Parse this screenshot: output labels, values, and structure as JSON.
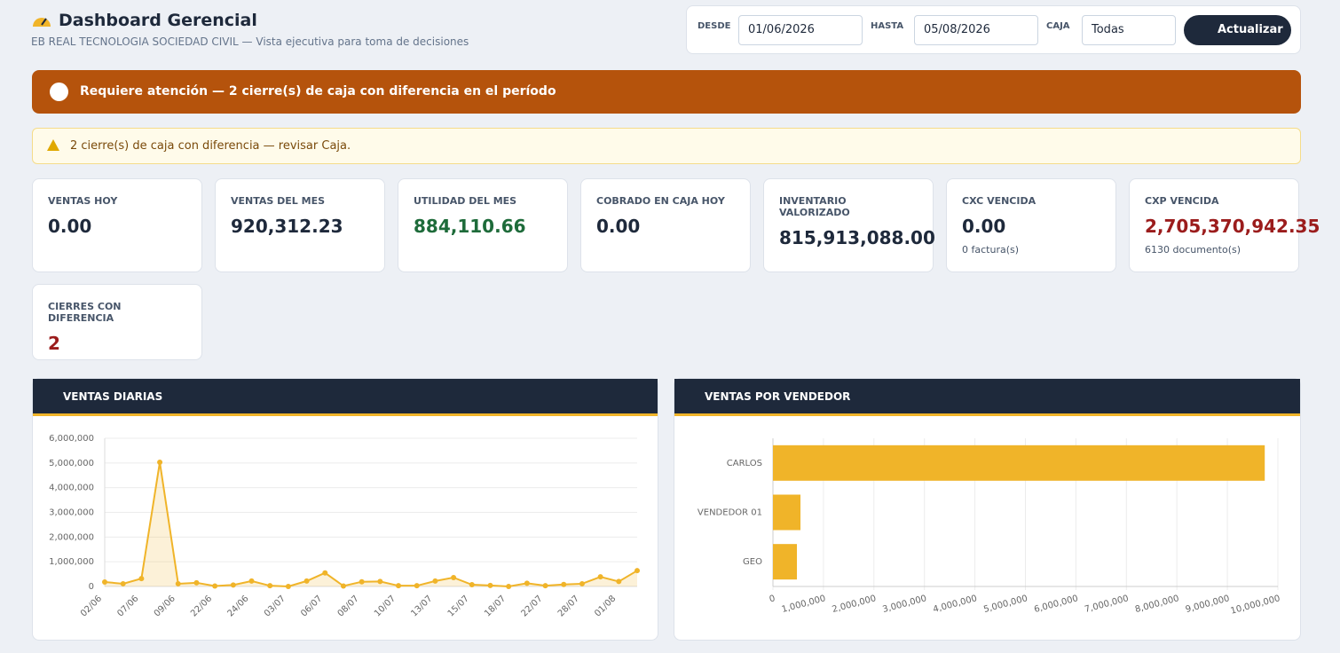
{
  "header": {
    "title": "Dashboard Gerencial",
    "subtitle": "EB REAL TECNOLOGIA SOCIEDAD CIVIL — Vista ejecutiva para toma de decisiones"
  },
  "filters": {
    "from_label": "DESDE",
    "from_value": "01/06/2026",
    "to_label": "HASTA",
    "to_value": "05/08/2026",
    "box_label": "CAJA",
    "box_value": "Todas",
    "button": "Actualizar"
  },
  "alert": "Requiere atención — 2 cierre(s) de caja con diferencia en el período",
  "warning": "2 cierre(s) de caja con diferencia — revisar Caja.",
  "kpis": [
    {
      "label": "VENTAS HOY",
      "value": "0.00",
      "color": "#1e293b"
    },
    {
      "label": "VENTAS DEL MES",
      "value": "920,312.23",
      "color": "#1e293b"
    },
    {
      "label": "UTILIDAD DEL MES",
      "value": "884,110.66",
      "color": "#1e6b3a"
    },
    {
      "label": "COBRADO EN CAJA HOY",
      "value": "0.00",
      "color": "#1e293b"
    },
    {
      "label": "INVENTARIO VALORIZADO",
      "value": "815,913,088.00",
      "color": "#1e293b"
    },
    {
      "label": "CXC VENCIDA",
      "value": "0.00",
      "sub": "0 factura(s)",
      "color": "#1e293b"
    },
    {
      "label": "CXP VENCIDA",
      "value": "2,705,370,942.35",
      "sub": "6130 documento(s)",
      "color": "#9b1c1c"
    },
    {
      "label": "CIERRES CON DIFERENCIA",
      "value": "2",
      "color": "#9b1c1c"
    }
  ],
  "chart_data": [
    {
      "type": "line",
      "title": "VENTAS DIARIAS",
      "color": "#f0b429",
      "grid": true,
      "categories": [
        "02/06",
        null,
        "07/06",
        null,
        "09/06",
        null,
        "22/06",
        null,
        "24/06",
        null,
        "03/07",
        null,
        "06/07",
        null,
        "08/07",
        null,
        "10/07",
        null,
        "13/07",
        null,
        "15/07",
        null,
        "18/07",
        null,
        "22/07",
        null,
        "28/07",
        null,
        "01/08",
        null
      ],
      "values": [
        180000,
        110000,
        320000,
        5030000,
        110000,
        150000,
        20000,
        60000,
        220000,
        30000,
        0,
        220000,
        550000,
        20000,
        190000,
        200000,
        30000,
        30000,
        220000,
        360000,
        70000,
        40000,
        0,
        130000,
        30000,
        80000,
        110000,
        390000,
        200000,
        640000
      ],
      "ylim": [
        0,
        6000000
      ],
      "yticks": [
        0,
        {
          "value": 1000000,
          "label": "1,000,000"
        },
        {
          "value": 2000000,
          "label": "2,000,000"
        },
        {
          "value": 3000000,
          "label": "3,000,000"
        },
        {
          "value": 4000000,
          "label": "4,000,000"
        },
        {
          "value": 5000000,
          "label": "5,000,000"
        },
        {
          "value": 6000000,
          "label": "6,000,000"
        }
      ]
    },
    {
      "type": "hbar",
      "title": "VENTAS POR VENDEDOR",
      "color": "#f0b429",
      "grid": true,
      "categories": [
        "CARLOS",
        "VENDEDOR 01",
        "GEO"
      ],
      "values": [
        9740000,
        545000,
        475000
      ],
      "xlim": [
        0,
        10000000
      ],
      "xticks": [
        0,
        {
          "value": 1000000,
          "label": "1,000,000"
        },
        {
          "value": 2000000,
          "label": "2,000,000"
        },
        {
          "value": 3000000,
          "label": "3,000,000"
        },
        {
          "value": 4000000,
          "label": "4,000,000"
        },
        {
          "value": 5000000,
          "label": "5,000,000"
        },
        {
          "value": 6000000,
          "label": "6,000,000"
        },
        {
          "value": 7000000,
          "label": "7,000,000"
        },
        {
          "value": 8000000,
          "label": "8,000,000"
        },
        {
          "value": 9000000,
          "label": "9,000,000"
        },
        {
          "value": 10000000,
          "label": "10,000,000"
        }
      ]
    }
  ]
}
